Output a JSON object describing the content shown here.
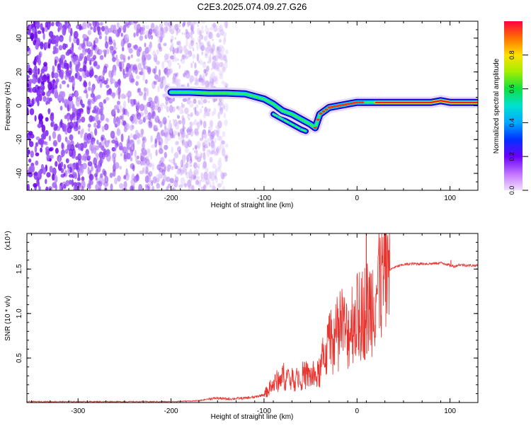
{
  "page_title": "C2E3.2025.074.09.27.G26",
  "colors": {
    "axis": "#000000",
    "snr_line": "#e8342f",
    "background": "#ffffff",
    "spectrogram_noise": "#7a30e0",
    "spectrogram_ridge_high": "#e81010"
  },
  "chart_data": [
    {
      "type": "heatmap",
      "title": "C2E3.2025.074.09.27.G26",
      "xlabel": "Height of straight line (km)",
      "ylabel": "Frequency (Hz)",
      "xlim": [
        -355,
        130
      ],
      "ylim": [
        -50,
        50
      ],
      "xticks": [
        -300,
        -200,
        -100,
        0,
        100
      ],
      "xtick_labels": [
        "-300",
        "-200",
        "-100",
        "0",
        "100"
      ],
      "yticks": [
        -40,
        -20,
        0,
        20,
        40
      ],
      "ytick_labels": [
        "-40",
        "-20",
        "0",
        "20",
        "40"
      ],
      "colorbar": {
        "label": "Normalized spectral amplitude",
        "range": [
          0,
          1
        ],
        "ticks": [
          0.0,
          0.2,
          0.4,
          0.6,
          0.8
        ],
        "tick_labels": [
          "0.0",
          "0.2",
          "0.4",
          "0.6",
          "0.8"
        ]
      },
      "noise_region_x": [
        -355,
        -160
      ],
      "ridge_main": {
        "x": [
          -200,
          -180,
          -160,
          -140,
          -120,
          -100,
          -90,
          -80,
          -70,
          -60,
          -50,
          -45,
          -40,
          -30,
          -20,
          -10,
          0,
          20,
          40,
          60,
          80,
          90,
          100,
          130
        ],
        "freq": [
          8,
          8,
          7.5,
          7.5,
          7,
          4,
          1,
          -3,
          -5,
          -8,
          -11,
          -13,
          -5,
          -1,
          0,
          1,
          2,
          2,
          2,
          2,
          2,
          3,
          2,
          2
        ]
      },
      "ridge_secondary": {
        "x": [
          -90,
          -80,
          -70,
          -60,
          -55
        ],
        "freq": [
          -5,
          -8,
          -11,
          -14,
          -15
        ]
      }
    },
    {
      "type": "line",
      "title": "",
      "xlabel": "Height of straight line (km)",
      "ylabel": "SNR (10 * v/v)",
      "y_multiplier": "(x10⁴)",
      "xlim": [
        -355,
        130
      ],
      "ylim": [
        0,
        1.9
      ],
      "xticks": [
        -300,
        -200,
        -100,
        0,
        100
      ],
      "xtick_labels": [
        "-300",
        "-200",
        "-100",
        "0",
        "100"
      ],
      "yticks": [
        0.5,
        1.0,
        1.5
      ],
      "ytick_labels": [
        "0.5",
        "1.0",
        "1.5"
      ],
      "series": [
        {
          "name": "SNR",
          "x": [
            -355,
            -300,
            -250,
            -200,
            -170,
            -160,
            -150,
            -140,
            -120,
            -110,
            -100,
            -90,
            -80,
            -70,
            -60,
            -50,
            -45,
            -40,
            -35,
            -30,
            -25,
            -20,
            -15,
            -10,
            -5,
            0,
            5,
            10,
            15,
            20,
            25,
            30,
            40,
            50,
            60,
            70,
            80,
            90,
            95,
            100,
            105,
            110,
            120,
            130
          ],
          "y": [
            0.01,
            0.01,
            0.01,
            0.01,
            0.02,
            0.04,
            0.05,
            0.04,
            0.05,
            0.06,
            0.09,
            0.2,
            0.3,
            0.25,
            0.3,
            0.3,
            0.28,
            0.33,
            0.55,
            0.65,
            0.7,
            0.75,
            0.85,
            0.75,
            0.95,
            0.95,
            1.0,
            1.05,
            1.1,
            1.25,
            1.35,
            1.45,
            1.52,
            1.55,
            1.56,
            1.56,
            1.56,
            1.57,
            1.56,
            1.54,
            1.53,
            1.55,
            1.54,
            1.54
          ],
          "spikes": [
            {
              "x": 10,
              "y": 1.95
            },
            {
              "x": 10.5,
              "y": 0.55
            },
            {
              "x": 101,
              "y": 1.6
            }
          ]
        }
      ]
    }
  ]
}
